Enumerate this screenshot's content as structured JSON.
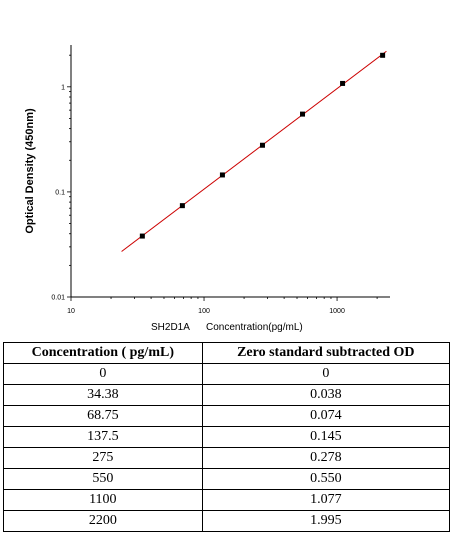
{
  "chart_data": {
    "type": "scatter",
    "x_scale": "log",
    "y_scale": "log",
    "xlim": [
      10,
      2500
    ],
    "ylim": [
      0.01,
      2.5
    ],
    "x_ticks": [
      10,
      100,
      1000
    ],
    "x_tick_labels": [
      "10",
      "100",
      "1000"
    ],
    "y_ticks": [
      0.01,
      0.1,
      1
    ],
    "y_tick_labels": [
      "0.01",
      "0.1",
      "1"
    ],
    "xlabel_prefix": "SH2D1A",
    "xlabel": "Concentration(pg/mL)",
    "ylabel": "Optical Density (450nm)",
    "grid": false,
    "series": [
      {
        "points": [
          {
            "x": 34.38,
            "y": 0.038
          },
          {
            "x": 68.75,
            "y": 0.074
          },
          {
            "x": 137.5,
            "y": 0.145
          },
          {
            "x": 275,
            "y": 0.278
          },
          {
            "x": 550,
            "y": 0.55
          },
          {
            "x": 1100,
            "y": 1.077
          },
          {
            "x": 2200,
            "y": 1.995
          }
        ],
        "fit_line": {
          "x_start": 24,
          "x_end": 2350
        },
        "marker_color": "#000000",
        "line_color": "#cc0000"
      }
    ]
  },
  "table": {
    "headers": [
      "Concentration ( pg/mL)",
      "Zero standard subtracted OD"
    ],
    "rows": [
      [
        "0",
        "0"
      ],
      [
        "34.38",
        "0.038"
      ],
      [
        "68.75",
        "0.074"
      ],
      [
        "137.5",
        "0.145"
      ],
      [
        "275",
        "0.278"
      ],
      [
        "550",
        "0.550"
      ],
      [
        "1100",
        "1.077"
      ],
      [
        "2200",
        "1.995"
      ]
    ]
  }
}
